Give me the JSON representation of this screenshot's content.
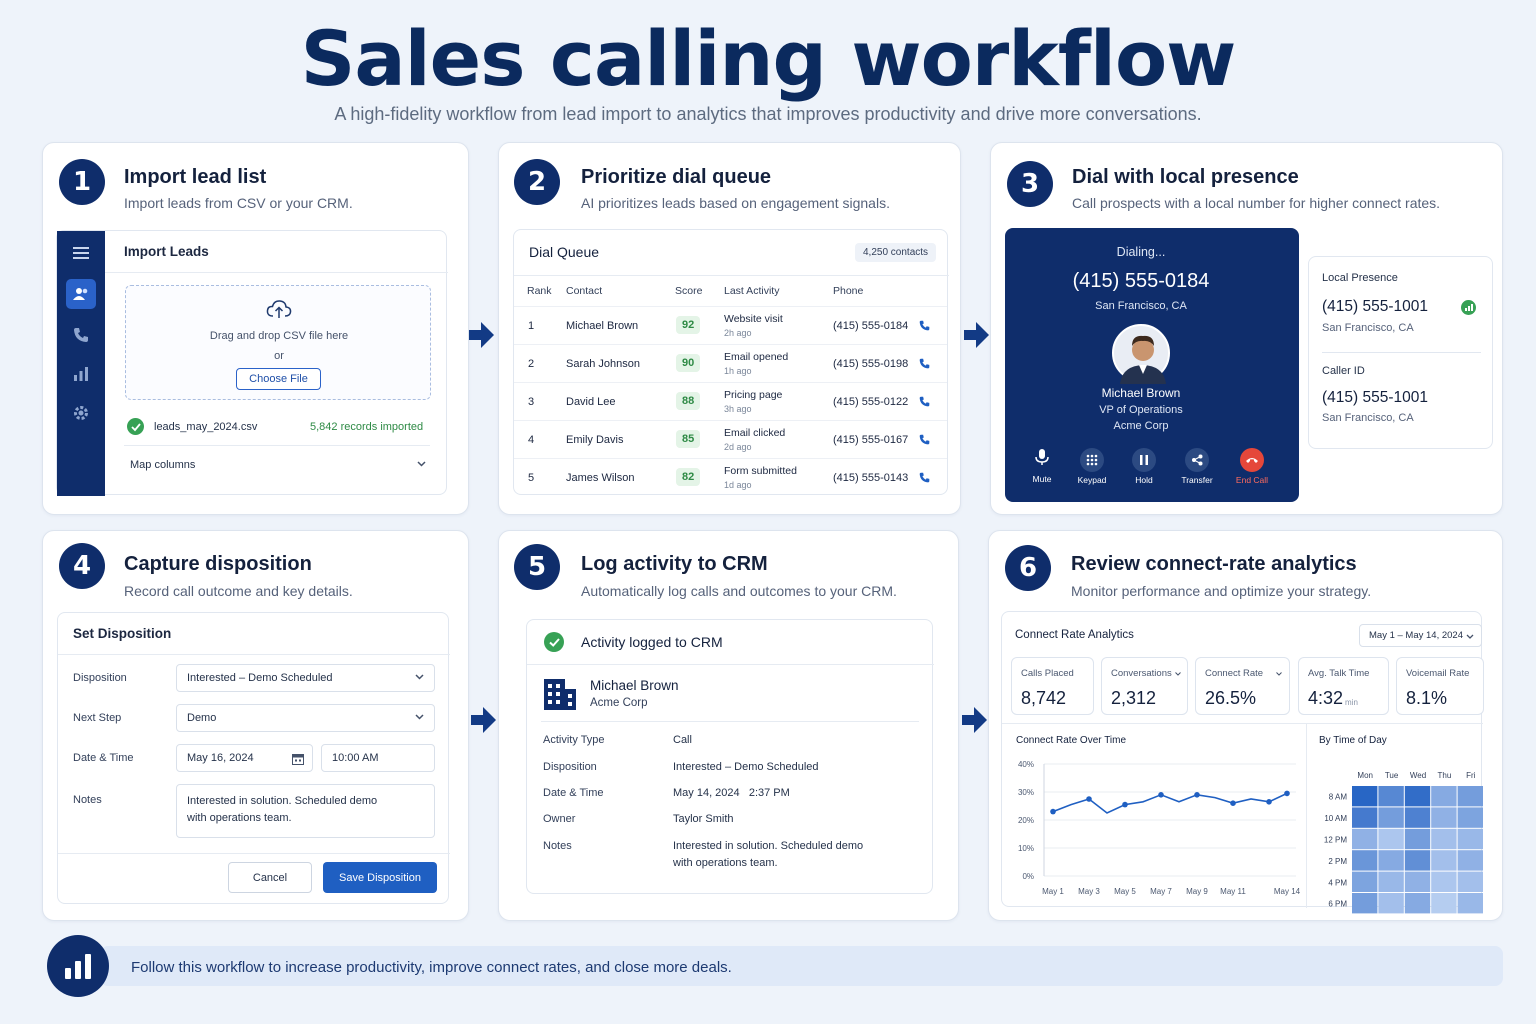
{
  "header": {
    "title": "Sales calling workflow",
    "subtitle": "A high-fidelity workflow from lead import to analytics that improves productivity and drive more conversations."
  },
  "colors": {
    "navy": "#0f2d6b",
    "accent": "#1f5fc2",
    "success": "#37a155",
    "danger": "#e5473a"
  },
  "steps": [
    {
      "num": "1",
      "title": "Import lead list",
      "desc": "Import leads from CSV or your CRM."
    },
    {
      "num": "2",
      "title": "Prioritize dial queue",
      "desc": "AI prioritizes leads based on engagement signals."
    },
    {
      "num": "3",
      "title": "Dial with local presence",
      "desc": "Call prospects with a local number for higher connect rates."
    },
    {
      "num": "4",
      "title": "Capture disposition",
      "desc": "Record call outcome and key details."
    },
    {
      "num": "5",
      "title": "Log activity to CRM",
      "desc": "Automatically log calls and outcomes to your CRM."
    },
    {
      "num": "6",
      "title": "Review connect-rate analytics",
      "desc": "Monitor performance and optimize your strategy."
    }
  ],
  "import": {
    "sidebar_icons": [
      "menu-icon",
      "users-icon",
      "phone-icon",
      "bar-chart-icon",
      "gear-icon"
    ],
    "title": "Import Leads",
    "drop_text": "Drag and drop CSV file here",
    "or": "or",
    "choose_file": "Choose File",
    "file_name": "leads_may_2024.csv",
    "records": "5,842 records imported",
    "map_columns": "Map columns"
  },
  "queue": {
    "title": "Dial Queue",
    "badge": "4,250 contacts",
    "headers": {
      "rank": "Rank",
      "contact": "Contact",
      "score": "Score",
      "activity": "Last Activity",
      "phone": "Phone"
    },
    "rows": [
      {
        "rank": "1",
        "name": "Michael Brown",
        "score": "92",
        "activity": "Website visit",
        "ago": "2h ago",
        "phone": "(415) 555-0184"
      },
      {
        "rank": "2",
        "name": "Sarah Johnson",
        "score": "90",
        "activity": "Email opened",
        "ago": "1h ago",
        "phone": "(415) 555-0198"
      },
      {
        "rank": "3",
        "name": "David Lee",
        "score": "88",
        "activity": "Pricing page",
        "ago": "3h ago",
        "phone": "(415) 555-0122"
      },
      {
        "rank": "4",
        "name": "Emily Davis",
        "score": "85",
        "activity": "Email clicked",
        "ago": "2d ago",
        "phone": "(415) 555-0167"
      },
      {
        "rank": "5",
        "name": "James Wilson",
        "score": "82",
        "activity": "Form submitted",
        "ago": "1d ago",
        "phone": "(415) 555-0143"
      }
    ]
  },
  "dialer": {
    "status": "Dialing...",
    "number": "(415) 555-0184",
    "location": "San Francisco, CA",
    "contact_name": "Michael Brown",
    "contact_role": "VP of Operations",
    "contact_company": "Acme Corp",
    "controls": [
      {
        "label": "Mute",
        "icon": "microphone-icon"
      },
      {
        "label": "Keypad",
        "icon": "keypad-icon"
      },
      {
        "label": "Hold",
        "icon": "pause-icon"
      },
      {
        "label": "Transfer",
        "icon": "transfer-icon"
      },
      {
        "label": "End Call",
        "icon": "end-call-icon"
      }
    ],
    "local_presence_label": "Local Presence",
    "local_number": "(415) 555-1001",
    "local_location": "San Francisco, CA",
    "caller_id_label": "Caller ID",
    "caller_id_number": "(415) 555-1001",
    "caller_id_location": "San Francisco, CA"
  },
  "disposition": {
    "title": "Set Disposition",
    "disposition_label": "Disposition",
    "disposition_value": "Interested – Demo Scheduled",
    "next_step_label": "Next Step",
    "next_step_value": "Demo",
    "datetime_label": "Date & Time",
    "date_value": "May 16, 2024",
    "time_value": "10:00 AM",
    "notes_label": "Notes",
    "notes_line1": "Interested in solution. Scheduled demo",
    "notes_line2": "with operations team.",
    "cancel": "Cancel",
    "save": "Save Disposition"
  },
  "crm": {
    "banner": "Activity logged to CRM",
    "contact_name": "Michael Brown",
    "company": "Acme Corp",
    "fields": [
      {
        "label": "Activity Type",
        "value": "Call"
      },
      {
        "label": "Disposition",
        "value": "Interested – Demo Scheduled"
      },
      {
        "label": "Date & Time",
        "value": "May 14, 2024   2:37 PM"
      },
      {
        "label": "Owner",
        "value": "Taylor Smith"
      }
    ],
    "notes_label": "Notes",
    "notes_line1": "Interested in solution. Scheduled demo",
    "notes_line2": "with operations team."
  },
  "analytics": {
    "title": "Connect Rate Analytics",
    "date_range": "May 1 – May 14, 2024",
    "metrics": [
      {
        "label": "Calls Placed",
        "value": "8,742",
        "unit": ""
      },
      {
        "label": "Conversations",
        "value": "2,312",
        "unit": ""
      },
      {
        "label": "Connect Rate",
        "value": "26.5%",
        "unit": ""
      },
      {
        "label": "Avg. Talk Time",
        "value": "4:32",
        "unit": "min"
      },
      {
        "label": "Voicemail Rate",
        "value": "8.1%",
        "unit": ""
      }
    ]
  },
  "chart_data": [
    {
      "type": "line",
      "title": "Connect Rate Over Time",
      "x": [
        "May 1",
        "May 2",
        "May 3",
        "May 4",
        "May 5",
        "May 6",
        "May 7",
        "May 8",
        "May 9",
        "May 10",
        "May 11",
        "May 12",
        "May 13",
        "May 14"
      ],
      "x_tick_labels": [
        "May 1",
        "May 3",
        "May 5",
        "May 7",
        "May 9",
        "May 11",
        "May 14"
      ],
      "values": [
        23,
        25.5,
        27.5,
        22.5,
        25.5,
        26.5,
        29,
        26.5,
        29,
        28,
        26,
        27.5,
        26.5,
        29.5
      ],
      "ylim": [
        0,
        40
      ],
      "y_tick_labels": [
        "0%",
        "10%",
        "20%",
        "30%",
        "40%"
      ],
      "grid": true,
      "color": "#1f5fc2"
    },
    {
      "type": "heatmap",
      "title": "By Time of Day",
      "columns": [
        "Mon",
        "Tue",
        "Wed",
        "Thu",
        "Fri"
      ],
      "rows": [
        "8 AM",
        "10 AM",
        "12 PM",
        "2 PM",
        "4 PM",
        "6 PM"
      ],
      "values": [
        [
          0.95,
          0.7,
          0.9,
          0.45,
          0.55
        ],
        [
          0.8,
          0.55,
          0.75,
          0.4,
          0.5
        ],
        [
          0.4,
          0.25,
          0.55,
          0.3,
          0.35
        ],
        [
          0.6,
          0.45,
          0.65,
          0.3,
          0.4
        ],
        [
          0.5,
          0.35,
          0.4,
          0.25,
          0.3
        ],
        [
          0.55,
          0.3,
          0.45,
          0.2,
          0.35
        ]
      ]
    }
  ],
  "footer": {
    "icon": "bar-chart-icon",
    "text": "Follow this workflow to increase productivity, improve connect rates, and close more deals."
  }
}
